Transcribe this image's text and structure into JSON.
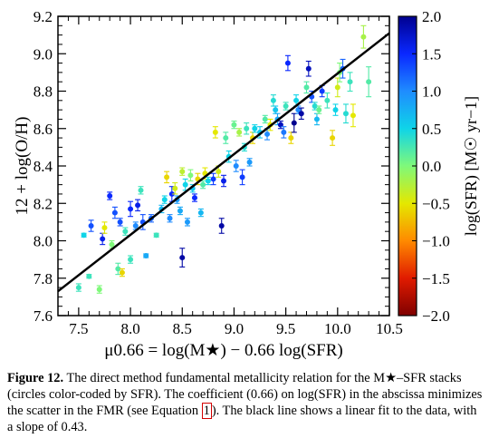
{
  "chart_data": {
    "type": "scatter",
    "xlabel": "μ0.66 = log(M★) − 0.66 log(SFR)",
    "ylabel": "12 + log(O/H)",
    "colorbar_label": "log(SFR) [M☉ yr−1]",
    "xlim": [
      7.3,
      10.5
    ],
    "ylim": [
      7.6,
      9.2
    ],
    "colorbar_range": [
      -2.0,
      2.0
    ],
    "x_ticks": [
      "7.5",
      "8.0",
      "8.5",
      "9.0",
      "9.5",
      "10.0",
      "10.5"
    ],
    "y_ticks": [
      "7.6",
      "7.8",
      "8.0",
      "8.2",
      "8.4",
      "8.6",
      "8.8",
      "9.0",
      "9.2"
    ],
    "colorbar_ticks": [
      "2.0",
      "1.5",
      "1.0",
      "0.5",
      "0.0",
      "−0.5",
      "−1.0",
      "−1.5",
      "−2.0"
    ],
    "colormap": [
      "#7f0000",
      "#e01b00",
      "#ff8a00",
      "#e4e800",
      "#7ff97a",
      "#0fd4e8",
      "#1f8cff",
      "#0a28ff",
      "#00008f"
    ],
    "fit_line": {
      "slope": 0.43,
      "x": [
        7.3,
        10.5
      ],
      "y": [
        7.73,
        9.11
      ],
      "color": "#000000"
    },
    "points": [
      {
        "x": 7.5,
        "y": 7.75,
        "err": 0.02,
        "c": 0.3
      },
      {
        "x": 7.55,
        "y": 8.03,
        "err": 0.01,
        "c": 0.5
      },
      {
        "x": 7.6,
        "y": 7.81,
        "err": 0.01,
        "c": 0.3
      },
      {
        "x": 7.62,
        "y": 8.08,
        "err": 0.03,
        "c": 1.3
      },
      {
        "x": 7.7,
        "y": 7.74,
        "err": 0.02,
        "c": 0.0
      },
      {
        "x": 7.73,
        "y": 8.01,
        "err": 0.03,
        "c": 1.6
      },
      {
        "x": 7.75,
        "y": 8.07,
        "err": 0.03,
        "c": -0.5
      },
      {
        "x": 7.8,
        "y": 8.24,
        "err": 0.02,
        "c": 1.5
      },
      {
        "x": 7.82,
        "y": 7.98,
        "err": 0.02,
        "c": 0.0
      },
      {
        "x": 7.85,
        "y": 8.15,
        "err": 0.03,
        "c": 1.3
      },
      {
        "x": 7.88,
        "y": 7.85,
        "err": 0.03,
        "c": 0.2
      },
      {
        "x": 7.9,
        "y": 8.1,
        "err": 0.02,
        "c": 1.3
      },
      {
        "x": 7.92,
        "y": 7.83,
        "err": 0.02,
        "c": -0.6
      },
      {
        "x": 7.95,
        "y": 8.05,
        "err": 0.02,
        "c": 0.3
      },
      {
        "x": 8.0,
        "y": 8.17,
        "err": 0.04,
        "c": 1.5
      },
      {
        "x": 8.0,
        "y": 7.9,
        "err": 0.02,
        "c": 0.3
      },
      {
        "x": 8.05,
        "y": 8.08,
        "err": 0.02,
        "c": 1.0
      },
      {
        "x": 8.07,
        "y": 8.19,
        "err": 0.03,
        "c": 1.6
      },
      {
        "x": 8.1,
        "y": 8.27,
        "err": 0.02,
        "c": 0.3
      },
      {
        "x": 8.12,
        "y": 8.1,
        "err": 0.04,
        "c": 1.3
      },
      {
        "x": 8.15,
        "y": 7.92,
        "err": 0.01,
        "c": 0.8
      },
      {
        "x": 8.2,
        "y": 8.12,
        "err": 0.02,
        "c": 1.2
      },
      {
        "x": 8.25,
        "y": 8.03,
        "err": 0.01,
        "c": 0.3
      },
      {
        "x": 8.3,
        "y": 8.17,
        "err": 0.02,
        "c": 0.7
      },
      {
        "x": 8.33,
        "y": 8.22,
        "err": 0.02,
        "c": 0.5
      },
      {
        "x": 8.35,
        "y": 8.34,
        "err": 0.03,
        "c": -0.6
      },
      {
        "x": 8.38,
        "y": 8.12,
        "err": 0.02,
        "c": 1.0
      },
      {
        "x": 8.4,
        "y": 8.25,
        "err": 0.04,
        "c": 1.5
      },
      {
        "x": 8.43,
        "y": 8.28,
        "err": 0.03,
        "c": -0.4
      },
      {
        "x": 8.45,
        "y": 8.22,
        "err": 0.02,
        "c": 0.9
      },
      {
        "x": 8.48,
        "y": 8.16,
        "err": 0.02,
        "c": 0.8
      },
      {
        "x": 8.5,
        "y": 8.37,
        "err": 0.02,
        "c": -0.3
      },
      {
        "x": 8.5,
        "y": 7.91,
        "err": 0.05,
        "c": 1.9
      },
      {
        "x": 8.53,
        "y": 8.3,
        "err": 0.03,
        "c": 0.5
      },
      {
        "x": 8.55,
        "y": 8.1,
        "err": 0.02,
        "c": 0.9
      },
      {
        "x": 8.58,
        "y": 8.35,
        "err": 0.03,
        "c": 0.0
      },
      {
        "x": 8.6,
        "y": 8.28,
        "err": 0.02,
        "c": 0.6
      },
      {
        "x": 8.62,
        "y": 8.23,
        "err": 0.02,
        "c": 1.5
      },
      {
        "x": 8.65,
        "y": 8.33,
        "err": 0.03,
        "c": -0.6
      },
      {
        "x": 8.68,
        "y": 8.15,
        "err": 0.02,
        "c": 0.7
      },
      {
        "x": 8.7,
        "y": 8.3,
        "err": 0.02,
        "c": 0.2
      },
      {
        "x": 8.72,
        "y": 8.36,
        "err": 0.03,
        "c": -0.5
      },
      {
        "x": 8.75,
        "y": 8.32,
        "err": 0.02,
        "c": 0.5
      },
      {
        "x": 8.8,
        "y": 8.33,
        "err": 0.03,
        "c": 1.4
      },
      {
        "x": 8.82,
        "y": 8.58,
        "err": 0.03,
        "c": -0.5
      },
      {
        "x": 8.85,
        "y": 8.37,
        "err": 0.03,
        "c": -0.4
      },
      {
        "x": 8.88,
        "y": 8.08,
        "err": 0.04,
        "c": 1.9
      },
      {
        "x": 8.9,
        "y": 8.32,
        "err": 0.03,
        "c": 1.6
      },
      {
        "x": 8.92,
        "y": 8.55,
        "err": 0.03,
        "c": 0.2
      },
      {
        "x": 8.95,
        "y": 8.45,
        "err": 0.03,
        "c": 0.5
      },
      {
        "x": 9.0,
        "y": 8.62,
        "err": 0.02,
        "c": 0.1
      },
      {
        "x": 9.02,
        "y": 8.4,
        "err": 0.03,
        "c": 1.0
      },
      {
        "x": 9.05,
        "y": 8.58,
        "err": 0.02,
        "c": -0.2
      },
      {
        "x": 9.08,
        "y": 8.34,
        "err": 0.04,
        "c": 1.4
      },
      {
        "x": 9.1,
        "y": 8.5,
        "err": 0.02,
        "c": 0.4
      },
      {
        "x": 9.12,
        "y": 8.6,
        "err": 0.03,
        "c": 0.3
      },
      {
        "x": 9.15,
        "y": 8.42,
        "err": 0.02,
        "c": 0.9
      },
      {
        "x": 9.18,
        "y": 8.55,
        "err": 0.03,
        "c": -0.6
      },
      {
        "x": 9.2,
        "y": 8.6,
        "err": 0.02,
        "c": 0.5
      },
      {
        "x": 9.25,
        "y": 8.58,
        "err": 0.03,
        "c": 0.6
      },
      {
        "x": 9.3,
        "y": 8.65,
        "err": 0.02,
        "c": 0.2
      },
      {
        "x": 9.32,
        "y": 8.57,
        "err": 0.03,
        "c": 1.0
      },
      {
        "x": 9.35,
        "y": 8.62,
        "err": 0.03,
        "c": -0.5
      },
      {
        "x": 9.38,
        "y": 8.75,
        "err": 0.03,
        "c": 0.4
      },
      {
        "x": 9.4,
        "y": 8.7,
        "err": 0.02,
        "c": 0.6
      },
      {
        "x": 9.42,
        "y": 8.65,
        "err": 0.03,
        "c": 0.8
      },
      {
        "x": 9.45,
        "y": 8.62,
        "err": 0.02,
        "c": 1.8
      },
      {
        "x": 9.48,
        "y": 8.58,
        "err": 0.03,
        "c": 1.1
      },
      {
        "x": 9.5,
        "y": 8.72,
        "err": 0.02,
        "c": 0.3
      },
      {
        "x": 9.52,
        "y": 8.95,
        "err": 0.04,
        "c": 1.5
      },
      {
        "x": 9.55,
        "y": 8.55,
        "err": 0.03,
        "c": -0.6
      },
      {
        "x": 9.58,
        "y": 8.63,
        "err": 0.05,
        "c": 2.0
      },
      {
        "x": 9.6,
        "y": 8.75,
        "err": 0.03,
        "c": 0.5
      },
      {
        "x": 9.62,
        "y": 8.7,
        "err": 0.02,
        "c": 1.0
      },
      {
        "x": 9.65,
        "y": 8.68,
        "err": 0.03,
        "c": 1.9
      },
      {
        "x": 9.7,
        "y": 8.82,
        "err": 0.03,
        "c": 0.2
      },
      {
        "x": 9.72,
        "y": 8.92,
        "err": 0.04,
        "c": 1.8
      },
      {
        "x": 9.75,
        "y": 8.77,
        "err": 0.03,
        "c": 1.3
      },
      {
        "x": 9.78,
        "y": 8.72,
        "err": 0.02,
        "c": 0.4
      },
      {
        "x": 9.8,
        "y": 8.65,
        "err": 0.03,
        "c": 0.7
      },
      {
        "x": 9.82,
        "y": 8.7,
        "err": 0.02,
        "c": 0.1
      },
      {
        "x": 9.85,
        "y": 8.8,
        "err": 0.03,
        "c": 1.4
      },
      {
        "x": 9.9,
        "y": 8.75,
        "err": 0.04,
        "c": 0.3
      },
      {
        "x": 9.95,
        "y": 8.55,
        "err": 0.04,
        "c": -0.6
      },
      {
        "x": 9.98,
        "y": 8.7,
        "err": 0.03,
        "c": 0.5
      },
      {
        "x": 10.0,
        "y": 8.82,
        "err": 0.05,
        "c": -0.4
      },
      {
        "x": 10.02,
        "y": 8.9,
        "err": 0.05,
        "c": 0.0
      },
      {
        "x": 10.05,
        "y": 8.92,
        "err": 0.05,
        "c": 1.2
      },
      {
        "x": 10.08,
        "y": 8.68,
        "err": 0.05,
        "c": 0.4
      },
      {
        "x": 10.12,
        "y": 8.85,
        "err": 0.05,
        "c": 0.3
      },
      {
        "x": 10.15,
        "y": 8.67,
        "err": 0.06,
        "c": -0.5
      },
      {
        "x": 10.25,
        "y": 9.09,
        "err": 0.06,
        "c": -0.2
      },
      {
        "x": 10.3,
        "y": 8.85,
        "err": 0.08,
        "c": 0.2
      }
    ]
  },
  "caption": {
    "label": "Figure 12.",
    "part1": "The direct method fundamental metallicity relation for the M★–SFR stacks (circles color-coded by SFR). The coefficient (0.66) on log(SFR) in the abscissa minimizes the scatter in the FMR (see Equation ",
    "eq_ref": "1",
    "part2": "). The black line shows a linear fit to the data, with a slope of 0.43."
  }
}
